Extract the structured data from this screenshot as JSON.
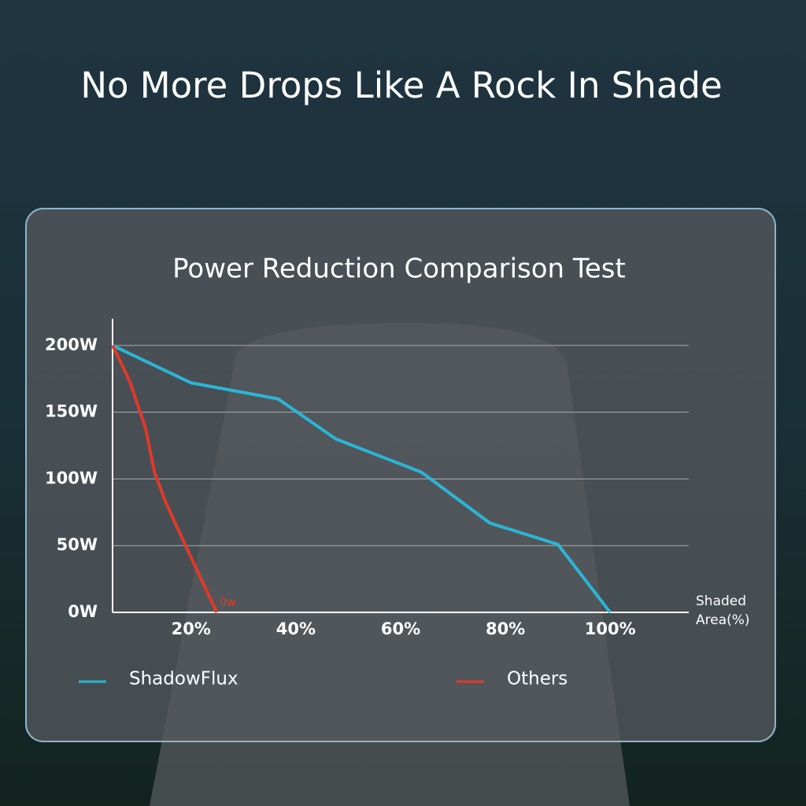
{
  "title": "No More Drops Like A Rock In Shade",
  "chart_data": {
    "type": "line",
    "title": "Power Reduction Comparison Test",
    "x_label": "Shaded Area(%)",
    "xlim": [
      5,
      115
    ],
    "ylim": [
      0,
      220
    ],
    "xticks": [
      {
        "value": 20,
        "label": "20%"
      },
      {
        "value": 40,
        "label": "40%"
      },
      {
        "value": 60,
        "label": "60%"
      },
      {
        "value": 80,
        "label": "80%"
      },
      {
        "value": 100,
        "label": "100%"
      }
    ],
    "yticks": [
      {
        "value": 0,
        "label": "0W"
      },
      {
        "value": 50,
        "label": "50W"
      },
      {
        "value": 100,
        "label": "100W"
      },
      {
        "value": 150,
        "label": "150W"
      },
      {
        "value": 200,
        "label": "200W"
      }
    ],
    "grid": true,
    "series": [
      {
        "name": "ShadowFlux",
        "color": "#2bb5d6",
        "x": [
          5,
          20,
          36.6,
          47.6,
          64,
          77,
          90,
          100
        ],
        "values": [
          200,
          172,
          160,
          130,
          105,
          67,
          51,
          0
        ]
      },
      {
        "name": "Others",
        "color": "#e0392a",
        "x": [
          5,
          8.3,
          11.3,
          13,
          15.2,
          18.7,
          24.9
        ],
        "values": [
          200,
          173,
          138,
          105,
          82,
          52,
          0
        ],
        "end_label": "0w"
      }
    ]
  }
}
